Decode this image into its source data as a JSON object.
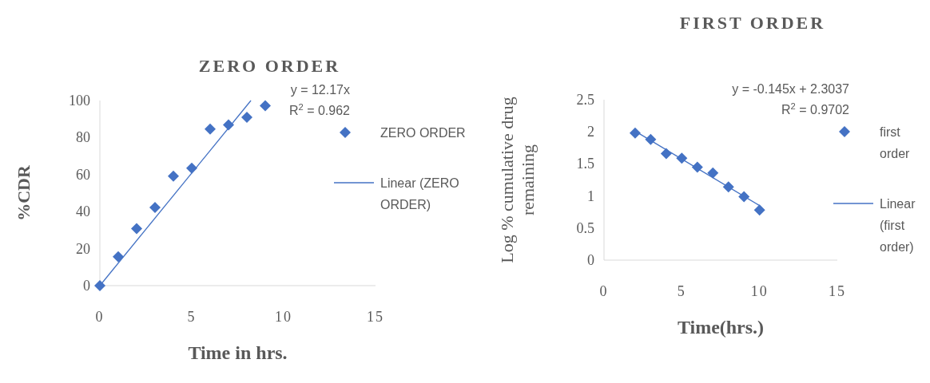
{
  "chart_data": [
    {
      "type": "scatter",
      "title": "ZERO ORDER",
      "xlabel": "Time in hrs.",
      "ylabel": "%CDR",
      "xlim": [
        0,
        15
      ],
      "ylim": [
        0,
        100
      ],
      "xticks": [
        0,
        5,
        10,
        15
      ],
      "yticks": [
        0,
        20,
        40,
        60,
        80,
        100
      ],
      "marker": "diamond",
      "legend": "right",
      "annotations": [
        "y = 12.17x",
        "R$^{2}$ = 0.962"
      ],
      "series": [
        {
          "name": "ZERO ORDER",
          "color": "#4472c4",
          "x": [
            0,
            1,
            2,
            3,
            4,
            5,
            6,
            7,
            8,
            9
          ],
          "values": [
            0,
            15.6,
            30.8,
            42.2,
            59.2,
            63.5,
            84.6,
            86.8,
            91,
            97.2
          ]
        },
        {
          "name": "Linear (ZERO ORDER)",
          "type": "line",
          "marker": "none",
          "color": "#4472c4",
          "x": [
            0,
            8.22
          ],
          "values": [
            0,
            100
          ]
        }
      ]
    },
    {
      "type": "scatter",
      "title": "FIRST ORDER",
      "xlabel": "Time(hrs.)",
      "ylabel": "Log % cumulative drug remaining",
      "xlim": [
        0,
        15
      ],
      "ylim": [
        0,
        2.5
      ],
      "xticks": [
        0,
        5,
        10,
        15
      ],
      "yticks": [
        0,
        0.5,
        1,
        1.5,
        2,
        2.5
      ],
      "marker": "diamond",
      "legend": "right",
      "annotations": [
        "y = -0.145x + 2.3037",
        "R$^{2}$ = 0.9702"
      ],
      "series": [
        {
          "name": "first order",
          "color": "#4472c4",
          "x": [
            2,
            3,
            4,
            5,
            6,
            7,
            8,
            9,
            10
          ],
          "values": [
            1.98,
            1.88,
            1.66,
            1.59,
            1.45,
            1.36,
            1.14,
            0.99,
            0.78
          ]
        },
        {
          "name": "Linear (first order)",
          "type": "line",
          "marker": "none",
          "color": "#4472c4",
          "x": [
            2,
            10
          ],
          "values": [
            2.01,
            0.85
          ]
        }
      ]
    }
  ]
}
